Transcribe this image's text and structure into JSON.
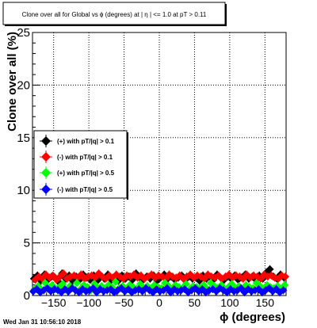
{
  "chart_data": {
    "type": "scatter",
    "title": "Clone  over all for Global vs ϕ (degrees) at | η | <= 1.0 at pT > 0.11",
    "xlabel": "ϕ (degrees)",
    "ylabel": "Clone  over all (%)",
    "xlim": [
      -180,
      180
    ],
    "ylim": [
      0,
      25
    ],
    "x_ticks": [
      -150,
      -100,
      -50,
      0,
      50,
      100,
      150
    ],
    "x_tick_labels": [
      "−150",
      "−100",
      "−50",
      "0",
      "50",
      "100",
      "150"
    ],
    "y_ticks": [
      0,
      5,
      10,
      15,
      20,
      25
    ],
    "y_tick_labels": [
      "0",
      "5",
      "10",
      "15",
      "20",
      "25"
    ],
    "grid": true,
    "legend_position": "left-middle",
    "series": [
      {
        "name": "(+) with pT/|q| > 0.1",
        "color": "#000000",
        "marker": "diamond",
        "x_start": -178,
        "x_step": 5,
        "values": [
          1.6,
          1.9,
          1.4,
          2.0,
          1.5,
          1.8,
          1.7,
          1.3,
          2.1,
          1.6,
          1.9,
          1.4,
          1.8,
          1.5,
          2.0,
          1.7,
          1.5,
          1.9,
          1.4,
          1.8,
          1.6,
          2.0,
          1.5,
          1.7,
          1.4,
          1.9,
          1.6,
          1.8,
          1.5,
          2.1,
          1.7,
          1.5,
          1.8,
          1.6,
          1.9,
          1.4,
          1.7,
          2.0,
          1.6,
          1.8,
          1.5,
          1.7,
          1.9,
          1.5,
          1.8,
          1.6,
          1.7,
          1.4,
          1.9,
          1.6,
          1.8,
          1.5,
          2.0,
          1.7,
          1.5,
          1.8,
          1.6,
          1.9,
          1.5,
          1.7,
          2.0,
          1.6,
          1.8,
          1.5,
          1.9,
          1.6,
          2.2,
          2.5,
          1.8,
          1.6,
          2.0,
          1.7
        ]
      },
      {
        "name": "(-) with pT/|q| > 0.1",
        "color": "#ff0000",
        "marker": "diamond",
        "x_start": -176,
        "x_step": 5,
        "values": [
          1.5,
          1.8,
          1.6,
          2.0,
          1.7,
          1.9,
          1.5,
          1.8,
          2.1,
          1.6,
          1.8,
          1.9,
          1.7,
          2.0,
          1.6,
          1.8,
          1.9,
          1.7,
          2.1,
          1.8,
          1.6,
          1.9,
          1.7,
          2.0,
          1.8,
          1.6,
          1.9,
          1.8,
          2.0,
          1.7,
          1.9,
          1.6,
          1.8,
          2.0,
          1.7,
          1.9,
          1.8,
          1.6,
          2.0,
          1.8,
          1.7,
          1.9,
          1.6,
          1.8,
          2.0,
          1.7,
          1.9,
          1.8,
          1.6,
          2.0,
          1.8,
          1.7,
          1.9,
          1.6,
          1.8,
          2.0,
          1.7,
          1.9,
          1.8,
          1.6,
          2.0,
          1.7,
          1.9,
          1.8,
          1.6,
          2.0,
          1.8,
          1.9,
          1.7,
          1.6,
          1.9,
          1.8
        ]
      },
      {
        "name": "(+) with pT/|q| > 0.5",
        "color": "#00ff00",
        "marker": "diamond",
        "x_start": -177,
        "x_step": 5,
        "values": [
          0.6,
          0.9,
          0.5,
          1.2,
          0.7,
          1.0,
          0.6,
          0.8,
          1.1,
          0.5,
          0.9,
          0.7,
          1.2,
          0.6,
          1.0,
          0.8,
          0.5,
          1.1,
          0.7,
          0.9,
          0.6,
          1.0,
          0.8,
          1.3,
          0.7,
          0.9,
          0.5,
          1.0,
          0.8,
          0.6,
          1.1,
          0.7,
          0.9,
          0.6,
          1.0,
          0.8,
          0.7,
          1.2,
          0.9,
          0.6,
          1.0,
          0.8,
          0.7,
          1.1,
          0.6,
          0.9,
          0.8,
          0.7,
          1.0,
          0.6,
          1.2,
          0.9,
          0.7,
          1.0,
          0.6,
          0.8,
          1.1,
          0.7,
          0.9,
          0.6,
          1.0,
          0.8,
          0.7,
          1.2,
          0.9,
          0.6,
          1.0,
          0.8,
          0.7,
          0.9,
          0.6,
          1.0
        ]
      },
      {
        "name": "(-) with pT/|q| > 0.5",
        "color": "#0000ff",
        "marker": "diamond",
        "x_start": -179,
        "x_step": 5,
        "values": [
          0.4,
          0.6,
          0.3,
          0.5,
          0.7,
          0.4,
          0.6,
          0.5,
          0.3,
          0.6,
          0.4,
          0.7,
          0.5,
          0.3,
          0.6,
          0.4,
          0.5,
          0.7,
          0.3,
          0.6,
          0.4,
          0.5,
          0.6,
          0.3,
          0.5,
          0.7,
          0.4,
          0.6,
          0.3,
          0.5,
          0.6,
          0.4,
          0.7,
          0.5,
          0.3,
          0.6,
          0.4,
          0.5,
          0.7,
          0.3,
          0.6,
          0.4,
          0.5,
          0.6,
          0.3,
          0.5,
          0.7,
          0.4,
          0.6,
          0.3,
          0.5,
          0.6,
          0.4,
          0.7,
          0.5,
          0.3,
          0.6,
          0.4,
          0.5,
          0.7,
          0.3,
          0.6,
          0.4,
          0.5,
          0.6,
          0.3,
          0.5,
          0.7,
          0.4,
          0.6,
          0.3,
          0.5
        ]
      }
    ]
  },
  "footer": {
    "timestamp": "Wed Jan 31 10:56:10 2018"
  }
}
